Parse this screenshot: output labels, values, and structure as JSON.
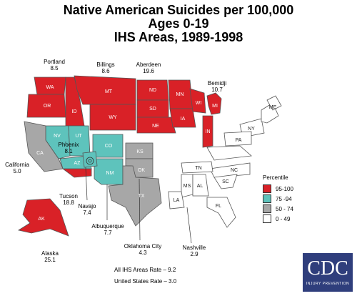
{
  "title": {
    "line1": "Native American Suicides per 100,000",
    "line2": "Ages 0-19",
    "line3": "IHS Areas, 1989-1998"
  },
  "colors": {
    "p95_100": "#d92127",
    "p75_94": "#5ec3bc",
    "p50_74": "#a7a7a7",
    "p0_49": "#ffffff"
  },
  "areas": [
    {
      "name": "Portland",
      "rate": "8.5",
      "percentile": "95-100"
    },
    {
      "name": "Billings",
      "rate": "8.6",
      "percentile": "95-100"
    },
    {
      "name": "Aberdeen",
      "rate": "19.6",
      "percentile": "95-100"
    },
    {
      "name": "Bemidji",
      "rate": "10.7",
      "percentile": "95-100"
    },
    {
      "name": "California",
      "rate": "5.0",
      "percentile": "50 - 74"
    },
    {
      "name": "Phoenix",
      "rate": "8.1",
      "percentile": "75 -94"
    },
    {
      "name": "Tucson",
      "rate": "18.8",
      "percentile": "95-100"
    },
    {
      "name": "Navajo",
      "rate": "7.4",
      "percentile": "75 -94"
    },
    {
      "name": "Albuquerque",
      "rate": "7.7",
      "percentile": "75 -94"
    },
    {
      "name": "Oklahoma City",
      "rate": "4.3",
      "percentile": "50 - 74"
    },
    {
      "name": "Nashville",
      "rate": "2.9",
      "percentile": "0 - 49"
    },
    {
      "name": "Alaska",
      "rate": "25.1",
      "percentile": "95-100"
    }
  ],
  "states": {
    "WA": "WA",
    "OR": "OR",
    "ID": "ID",
    "MT": "MT",
    "WY": "WY",
    "ND": "ND",
    "SD": "SD",
    "NE": "NE",
    "MN": "MN",
    "IA": "IA",
    "WI": "WI",
    "MI": "MI",
    "IN": "IN",
    "CA": "CA",
    "NV": "NV",
    "UT": "UT",
    "AZ": "AZ",
    "CO": "CO",
    "NM": "NM",
    "KS": "KS",
    "OK": "OK",
    "TX": "TX",
    "AK": "AK",
    "ME": "ME",
    "NY": "NY",
    "PA": "PA",
    "TN": "TN",
    "NC": "NC",
    "SC": "SC",
    "MS": "MS",
    "AL": "AL",
    "LA": "LA",
    "FL": "FL"
  },
  "legend": {
    "title": "Percentile",
    "items": [
      "95-100",
      "75 -94",
      "50 - 74",
      "0 - 49"
    ]
  },
  "rates": {
    "all_ihs": "All IHS Areas Rate – 9.2",
    "us": "United States Rate – 3.0"
  },
  "logo": {
    "main": "CDC",
    "sub": "INJURY PREVENTION"
  }
}
